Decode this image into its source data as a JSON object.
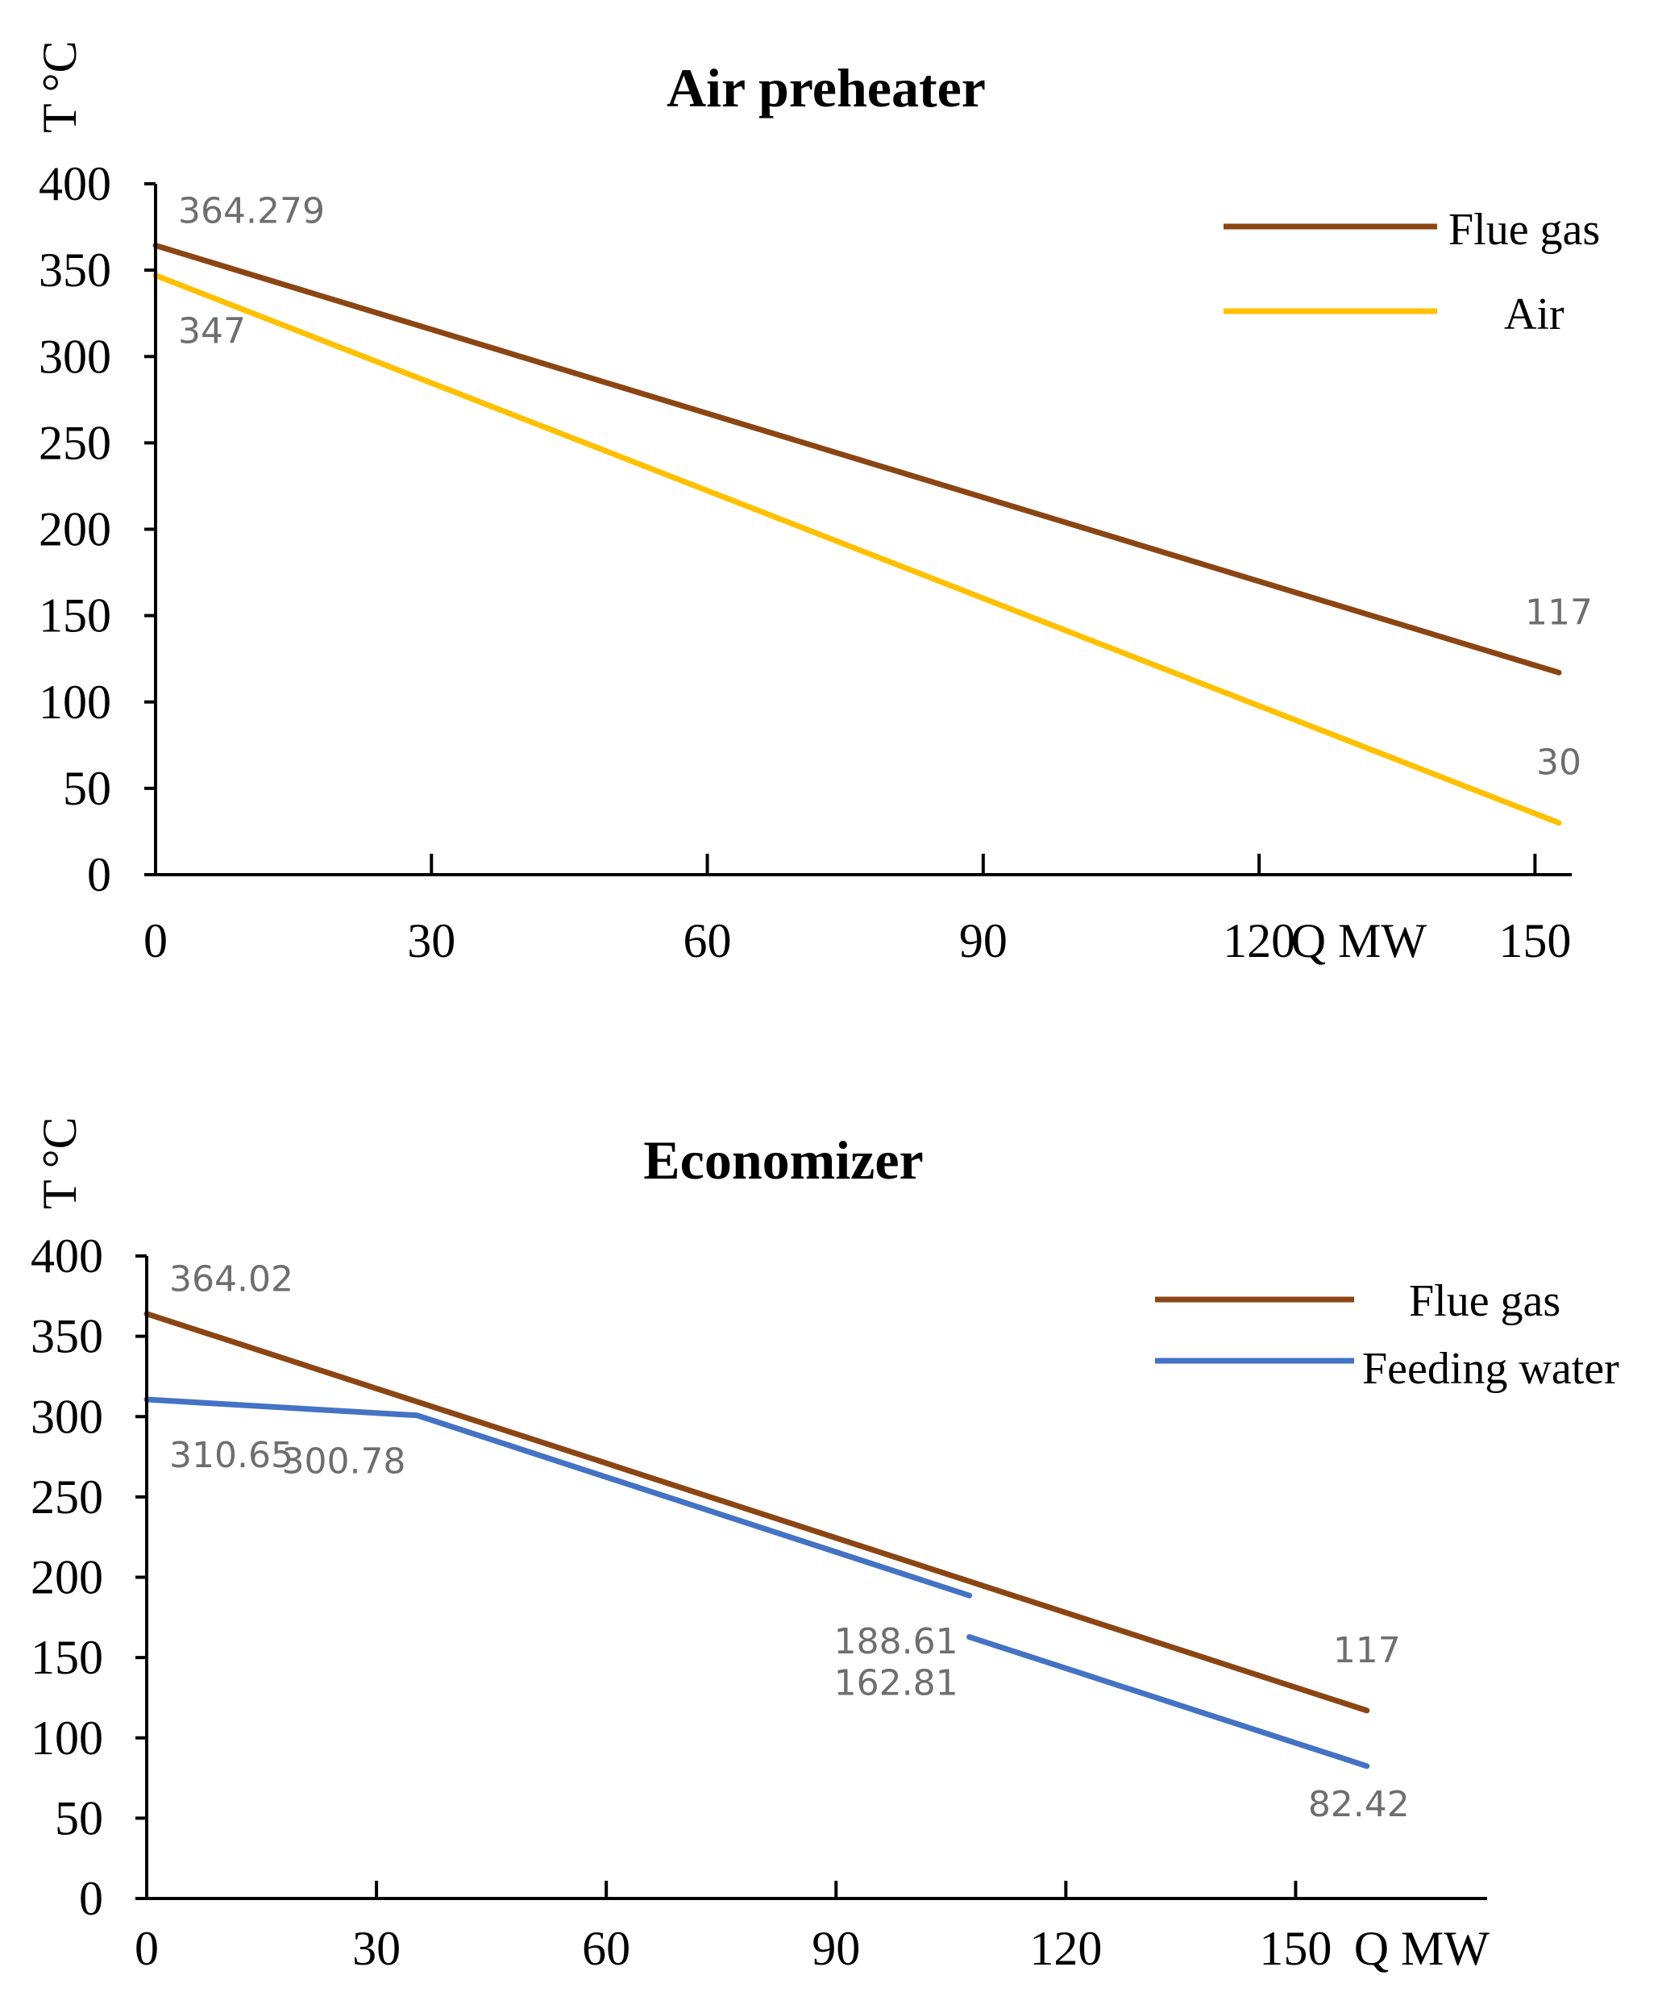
{
  "chart_data": [
    {
      "type": "line",
      "title": "Air preheater",
      "ylabel": "T °C",
      "xlabel": "Q MW",
      "xlim": [
        0,
        154
      ],
      "ylim": [
        0,
        400
      ],
      "x_ticks": [
        "0",
        "30",
        "60",
        "90",
        "120",
        "150"
      ],
      "x_tick_values": [
        0,
        30,
        60,
        90,
        120,
        150
      ],
      "y_ticks": [
        "0",
        "50",
        "100",
        "150",
        "200",
        "250",
        "300",
        "350",
        "400"
      ],
      "y_tick_values": [
        0,
        50,
        100,
        150,
        200,
        250,
        300,
        350,
        400
      ],
      "legend_position": "top-right",
      "series": [
        {
          "name": "Flue gas",
          "color": "#8B4513",
          "segments": [
            [
              {
                "x": 0,
                "y": 364.279
              },
              {
                "x": 152.6,
                "y": 117
              }
            ]
          ]
        },
        {
          "name": "Air",
          "color": "#FFC000",
          "segments": [
            [
              {
                "x": 0,
                "y": 347
              },
              {
                "x": 152.6,
                "y": 30
              }
            ]
          ]
        }
      ],
      "data_labels": [
        {
          "text": "364.279",
          "x": 0,
          "y": 364.279,
          "pos": "above-right"
        },
        {
          "text": "347",
          "x": 0,
          "y": 347,
          "pos": "below-right"
        },
        {
          "text": "117",
          "x": 152.6,
          "y": 117,
          "pos": "above"
        },
        {
          "text": "30",
          "x": 152.6,
          "y": 30,
          "pos": "above"
        }
      ]
    },
    {
      "type": "line",
      "title": "Economizer",
      "ylabel": "T °C",
      "xlabel": "Q MW",
      "xlim": [
        0,
        175
      ],
      "ylim": [
        0,
        400
      ],
      "x_ticks": [
        "0",
        "30",
        "60",
        "90",
        "120",
        "150"
      ],
      "x_tick_values": [
        0,
        30,
        60,
        90,
        120,
        150
      ],
      "y_ticks": [
        "0",
        "50",
        "100",
        "150",
        "200",
        "250",
        "300",
        "350",
        "400"
      ],
      "y_tick_values": [
        0,
        50,
        100,
        150,
        200,
        250,
        300,
        350,
        400
      ],
      "legend_position": "top-right",
      "series": [
        {
          "name": "Flue gas",
          "color": "#8B4513",
          "segments": [
            [
              {
                "x": 0,
                "y": 364.02
              },
              {
                "x": 159.3,
                "y": 117
              }
            ]
          ]
        },
        {
          "name": "Feeding water",
          "color": "#4472C4",
          "segments": [
            [
              {
                "x": 0,
                "y": 310.65
              },
              {
                "x": 35.3,
                "y": 300.78
              },
              {
                "x": 107.4,
                "y": 188.61
              }
            ],
            [
              {
                "x": 107.4,
                "y": 162.81
              },
              {
                "x": 159.3,
                "y": 82.42
              }
            ]
          ]
        }
      ],
      "data_labels": [
        {
          "text": "364.02",
          "x": 0,
          "y": 364.02,
          "pos": "above-right"
        },
        {
          "text": "310.65",
          "x": 0,
          "y": 310.65,
          "pos": "below-right"
        },
        {
          "text": "300.78",
          "x": 35.3,
          "y": 300.78,
          "pos": "below-left"
        },
        {
          "text": "188.61",
          "x": 107.4,
          "y": 188.61,
          "pos": "below-left"
        },
        {
          "text": "162.81",
          "x": 107.4,
          "y": 162.81,
          "pos": "below-left"
        },
        {
          "text": "117",
          "x": 159.3,
          "y": 117,
          "pos": "above"
        },
        {
          "text": "82.42",
          "x": 159.3,
          "y": 82.42,
          "pos": "below"
        }
      ]
    }
  ]
}
